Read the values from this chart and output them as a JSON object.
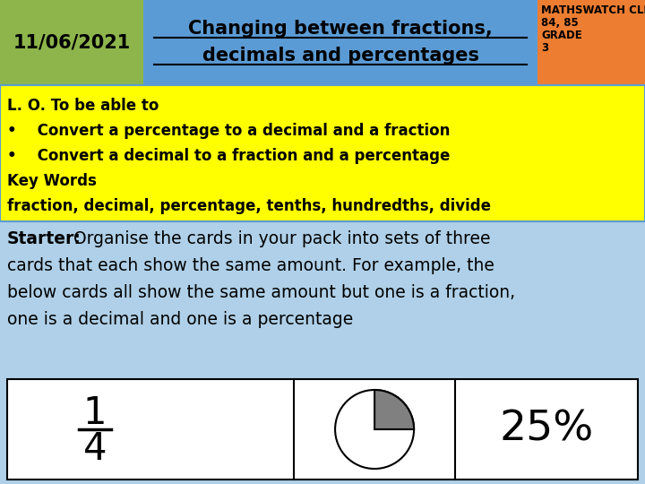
{
  "date": "11/06/2021",
  "title_line1": "Changing between fractions,",
  "title_line2": "decimals and percentages",
  "clip_line1": "MATHSWATCH CLIP",
  "clip_line2": "84, 85",
  "clip_line3": "GRADE",
  "clip_line4": "3",
  "header_date_bg": "#8db54b",
  "header_title_bg": "#5b9bd5",
  "header_clip_bg": "#ed7d31",
  "lo_bg": "#ffff00",
  "starter_bg": "#afd0e8",
  "lo_text_line1": "L. O. To be able to",
  "lo_bullet1": "•    Convert a percentage to a decimal and a fraction",
  "lo_bullet2": "•    Convert a decimal to a fraction and a percentage",
  "lo_kw_title": "Key Words",
  "lo_kw_words": "fraction, decimal, percentage, tenths, hundredths, divide",
  "starter_bold": "Starter:",
  "starter_rest_line1": " Organise the cards in your pack into sets of three",
  "starter_line2": "cards that each show the same amount. For example, the",
  "starter_line3": "below cards all show the same amount but one is a fraction,",
  "starter_line4": "one is a decimal and one is a percentage",
  "card_bg": "#ffffff",
  "pie_filled_color": "#808080",
  "pie_empty_color": "#ffffff",
  "fraction_num": "1",
  "fraction_den": "4",
  "percent_text": "25%"
}
